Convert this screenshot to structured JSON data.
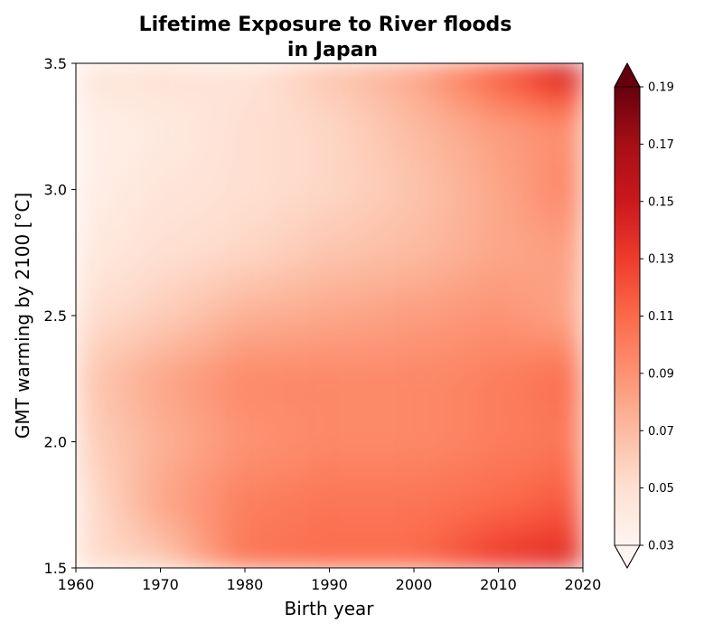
{
  "chart_data": {
    "type": "heatmap",
    "title_line1": "Lifetime Exposure to River floods",
    "title_line2": "in Japan",
    "xlabel": "Birth year",
    "ylabel": "GMT warming by 2100 [°C]",
    "xlim": [
      1960,
      2020
    ],
    "ylim": [
      1.5,
      3.5
    ],
    "x_ticks": [
      "1960",
      "1970",
      "1980",
      "1990",
      "2000",
      "2010",
      "2020"
    ],
    "y_ticks": [
      "1.5",
      "2.0",
      "2.5",
      "3.0",
      "3.5"
    ],
    "colorbar": {
      "colormap": "Reds",
      "range": [
        0.03,
        0.19
      ],
      "extend": "both",
      "ticks": [
        "0.03",
        "0.05",
        "0.07",
        "0.09",
        "0.11",
        "0.13",
        "0.15",
        "0.17",
        "0.19"
      ]
    },
    "x": [
      1960,
      1970,
      1980,
      1990,
      2000,
      2010,
      2020
    ],
    "y": [
      1.5,
      1.75,
      2.0,
      2.25,
      2.5,
      2.75,
      3.0,
      3.25,
      3.5
    ],
    "z": [
      [
        0.05,
        0.058,
        0.105,
        0.11,
        0.11,
        0.135,
        0.145
      ],
      [
        0.045,
        0.08,
        0.1,
        0.105,
        0.105,
        0.11,
        0.12
      ],
      [
        0.055,
        0.075,
        0.09,
        0.095,
        0.095,
        0.1,
        0.105
      ],
      [
        0.06,
        0.08,
        0.095,
        0.095,
        0.095,
        0.1,
        0.11
      ],
      [
        0.05,
        0.06,
        0.075,
        0.08,
        0.085,
        0.09,
        0.08
      ],
      [
        0.04,
        0.05,
        0.055,
        0.065,
        0.07,
        0.08,
        0.085
      ],
      [
        0.035,
        0.045,
        0.05,
        0.055,
        0.065,
        0.08,
        0.1
      ],
      [
        0.035,
        0.04,
        0.05,
        0.055,
        0.07,
        0.085,
        0.095
      ],
      [
        0.045,
        0.05,
        0.045,
        0.065,
        0.08,
        0.12,
        0.165
      ]
    ]
  }
}
